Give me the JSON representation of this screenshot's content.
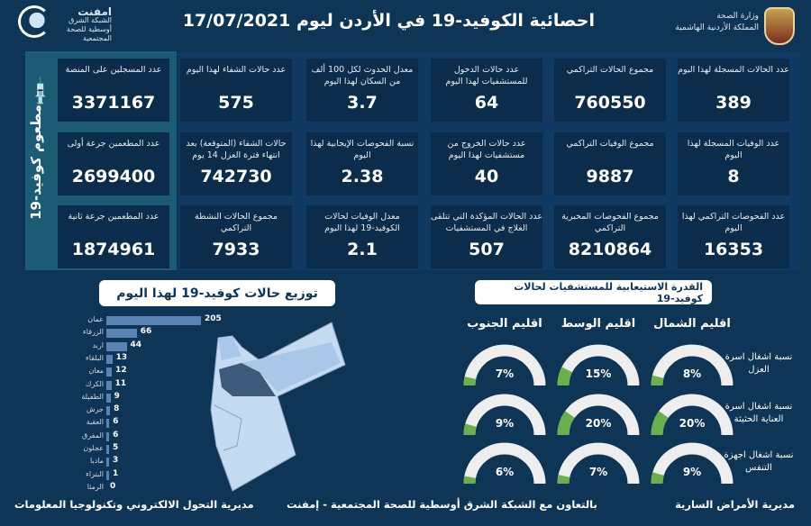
{
  "header": {
    "title": "احصائية الكوفيد-19 في الأردن ليوم 17/07/2021",
    "ministry_line1": "وزارة الصحة",
    "ministry_line2": "المملكة الأردنية الهاشمية",
    "partner_name": "امفنت",
    "partner_sub": "الشبكة الشرق أوسطية للصحة المجتمعية"
  },
  "vaccine": {
    "label": "مطعوم كوفيد-19",
    "cards": [
      {
        "label": "عدد المسجلين على المنصة",
        "value": "3371167"
      },
      {
        "label": "عدد المطعمين جرعة أولى",
        "value": "2699400"
      },
      {
        "label": "عدد المطعمين جرعة ثانية",
        "value": "1874961"
      }
    ]
  },
  "stats": [
    [
      {
        "label": "عدد الحالات المسجلة لهذا اليوم",
        "value": "389"
      },
      {
        "label": "مجموع الحالات التراكمي",
        "value": "760550"
      },
      {
        "label": "عدد حالات الدخول للمستشفيات لهذا اليوم",
        "value": "64"
      },
      {
        "label": "معدل الحدوث لكل 100 ألف من السكان لهذا اليوم",
        "value": "3.7"
      },
      {
        "label": "عدد حالات الشفاء لهذا اليوم",
        "value": "575"
      }
    ],
    [
      {
        "label": "عدد الوفيات المسجلة لهذا اليوم",
        "value": "8"
      },
      {
        "label": "مجموع الوفيات التراكمي",
        "value": "9887"
      },
      {
        "label": "عدد حالات الخروج من مستشفيات لهذا اليوم",
        "value": "40"
      },
      {
        "label": "نسبة الفحوصات الإيجابية لهذا اليوم",
        "value": "2.38"
      },
      {
        "label": "حالات الشفاء (المتوقعة) بعد انتهاء فترة العزل 14 يوم",
        "value": "742730"
      }
    ],
    [
      {
        "label": "عدد الفحوصات التراكمي لهذا اليوم",
        "value": "16353"
      },
      {
        "label": "مجموع الفحوصات المخبرية التراكمي",
        "value": "8210864"
      },
      {
        "label": "عدد الحالات المؤكدة التي تتلقى العلاج في المستشفيات",
        "value": "507"
      },
      {
        "label": "معدل الوفيات لحالات الكوفيد-19 لهذا اليوم",
        "value": "2.1"
      },
      {
        "label": "مجموع الحالات النشطة التراكمي",
        "value": "7933"
      }
    ]
  ],
  "distribution": {
    "title": "توزيع حالات كوفيد-19 لهذا اليوم"
  },
  "chart_data": {
    "type": "bar",
    "orientation": "horizontal",
    "categories": [
      "عمان",
      "الزرقاء",
      "اربد",
      "البلقاء",
      "معان",
      "الكرك",
      "الطفيلة",
      "جرش",
      "العقبة",
      "المفرق",
      "عجلون",
      "مادبا",
      "البتراء",
      "الرمثا"
    ],
    "values": [
      205,
      66,
      44,
      13,
      12,
      11,
      9,
      8,
      6,
      6,
      5,
      3,
      1,
      0
    ],
    "bar_color": "#5a84b3"
  },
  "capacity": {
    "title": "القدرة الاستيعابية للمستشفيات لحالات كوفيد-19",
    "regions": [
      "اقليم الشمال",
      "اقليم الوسط",
      "اقليم الجنوب"
    ],
    "rows": [
      {
        "label": "نسبة اشغال اسرة العزل",
        "values": [
          8,
          15,
          7
        ],
        "texts": [
          "8%",
          "15%",
          "7%"
        ]
      },
      {
        "label": "نسبة اشغال اسرة العناية الحثيثة",
        "values": [
          20,
          20,
          9
        ],
        "texts": [
          "20%",
          "20%",
          "9%"
        ]
      },
      {
        "label": "نسبة اشغال اجهزة التنفس",
        "values": [
          9,
          7,
          6
        ],
        "texts": [
          "9%",
          "7%",
          "6%"
        ]
      }
    ],
    "gauge_fill": "#6ab04c",
    "gauge_track": "#eeeeee"
  },
  "footer": {
    "right": "مديرية الأمراض السارية",
    "center": "بالتعاون مع الشبكة الشرق أوسطية للصحة المجتمعية - إمفنت",
    "left": "مديرية التحول الالكتروني وتكنولوجيا المعلومات"
  }
}
